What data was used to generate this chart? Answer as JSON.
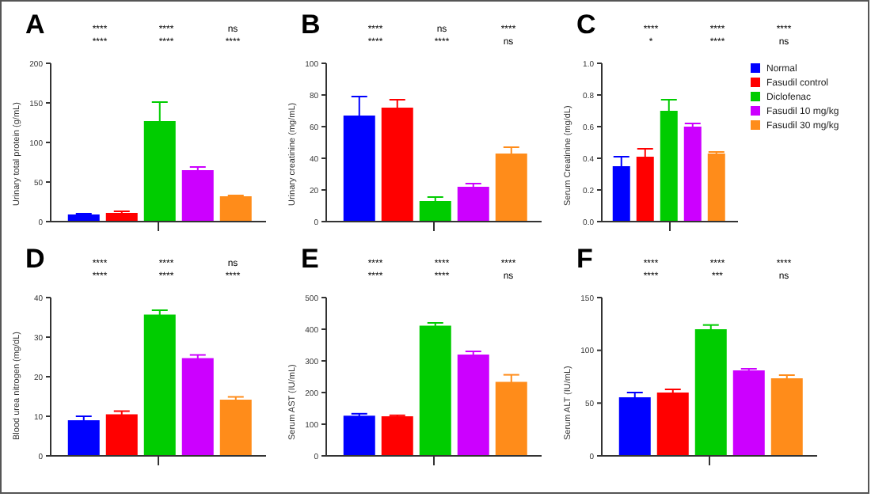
{
  "chart_data": [
    {
      "type": "bar",
      "title": "A",
      "ylabel": "Urinary total protein (g/mL)",
      "categories": [
        null
      ],
      "ylim": [
        0,
        200
      ],
      "yticks": [
        0,
        50,
        100,
        150,
        200
      ],
      "series": [
        {
          "color": "#0000ff",
          "values": [
            9
          ],
          "errors": [
            1
          ]
        },
        {
          "color": "#ff0000",
          "values": [
            11
          ],
          "errors": [
            2
          ]
        },
        {
          "color": "#00cc00",
          "values": [
            127
          ],
          "errors": [
            24
          ]
        },
        {
          "color": "#cc00ff",
          "values": [
            65
          ],
          "errors": [
            4
          ]
        },
        {
          "color": "#ff8c1a",
          "values": [
            32
          ],
          "errors": [
            1
          ]
        }
      ],
      "annotations": [
        "****",
        "****",
        "ns",
        "****",
        "****",
        "****"
      ]
    },
    {
      "type": "bar",
      "title": "B",
      "ylabel": "Urinary creatinine (mg/mL)",
      "categories": [
        null
      ],
      "ylim": [
        0,
        100
      ],
      "yticks": [
        0,
        20,
        40,
        60,
        80,
        100
      ],
      "series": [
        {
          "color": "#0000ff",
          "values": [
            67
          ],
          "errors": [
            12
          ]
        },
        {
          "color": "#ff0000",
          "values": [
            72
          ],
          "errors": [
            5
          ]
        },
        {
          "color": "#00cc00",
          "values": [
            13
          ],
          "errors": [
            2.5
          ]
        },
        {
          "color": "#cc00ff",
          "values": [
            22
          ],
          "errors": [
            2
          ]
        },
        {
          "color": "#ff8c1a",
          "values": [
            43
          ],
          "errors": [
            4
          ]
        }
      ],
      "annotations": [
        "****",
        "ns",
        "****",
        "****",
        "****",
        "ns"
      ]
    },
    {
      "type": "bar",
      "title": "C",
      "ylabel": "Serum Creatinine (mg/dL)",
      "categories": [
        null
      ],
      "ylim": [
        0,
        1
      ],
      "yticks": [
        {
          "value": 0,
          "label": "0.0"
        },
        {
          "value": 0.2,
          "label": "0.2"
        },
        {
          "value": 0.4,
          "label": "0.4"
        },
        {
          "value": 0.6,
          "label": "0.6"
        },
        {
          "value": 0.8,
          "label": "0.8"
        },
        {
          "value": 1,
          "label": "1.0"
        }
      ],
      "legend": "right",
      "series": [
        {
          "name": "Normal",
          "color": "#0000ff",
          "values": [
            0.35
          ],
          "errors": [
            0.06
          ]
        },
        {
          "name": "Fasudil control",
          "color": "#ff0000",
          "values": [
            0.41
          ],
          "errors": [
            0.05
          ]
        },
        {
          "name": "Diclofenac",
          "color": "#00cc00",
          "values": [
            0.7
          ],
          "errors": [
            0.07
          ]
        },
        {
          "name": "Fasudil 10 mg/kg",
          "color": "#cc00ff",
          "values": [
            0.6
          ],
          "errors": [
            0.02
          ]
        },
        {
          "name": "Fasudil 30 mg/kg",
          "color": "#ff8c1a",
          "values": [
            0.43
          ],
          "errors": [
            0.01
          ]
        }
      ],
      "annotations": [
        "****",
        "****",
        "****",
        "*",
        "****",
        "ns"
      ]
    },
    {
      "type": "bar",
      "title": "D",
      "ylabel": "Blood urea nitrogen (mg/dL)",
      "categories": [
        null
      ],
      "ylim": [
        0,
        40
      ],
      "yticks": [
        0,
        10,
        20,
        30,
        40
      ],
      "series": [
        {
          "color": "#0000ff",
          "values": [
            9
          ],
          "errors": [
            1
          ]
        },
        {
          "color": "#ff0000",
          "values": [
            10.5
          ],
          "errors": [
            0.8
          ]
        },
        {
          "color": "#00cc00",
          "values": [
            35.7
          ],
          "errors": [
            1.1
          ]
        },
        {
          "color": "#cc00ff",
          "values": [
            24.7
          ],
          "errors": [
            0.8
          ]
        },
        {
          "color": "#ff8c1a",
          "values": [
            14.2
          ],
          "errors": [
            0.7
          ]
        }
      ],
      "annotations": [
        "****",
        "****",
        "ns",
        "****",
        "****",
        "****"
      ]
    },
    {
      "type": "bar",
      "title": "E",
      "ylabel": "Serum AST (IU/mL)",
      "categories": [
        null
      ],
      "ylim": [
        0,
        500
      ],
      "yticks": [
        0,
        100,
        200,
        300,
        400,
        500
      ],
      "series": [
        {
          "color": "#0000ff",
          "values": [
            127
          ],
          "errors": [
            6
          ]
        },
        {
          "color": "#ff0000",
          "values": [
            125
          ],
          "errors": [
            3
          ]
        },
        {
          "color": "#00cc00",
          "values": [
            411
          ],
          "errors": [
            9
          ]
        },
        {
          "color": "#cc00ff",
          "values": [
            320
          ],
          "errors": [
            10
          ]
        },
        {
          "color": "#ff8c1a",
          "values": [
            234
          ],
          "errors": [
            22
          ]
        }
      ],
      "annotations": [
        "****",
        "****",
        "****",
        "****",
        "****",
        "ns"
      ]
    },
    {
      "type": "bar",
      "title": "F",
      "ylabel": "Serum ALT (IU/mL)",
      "categories": [
        null
      ],
      "ylim": [
        0,
        150
      ],
      "yticks": [
        0,
        50,
        100,
        150
      ],
      "series": [
        {
          "color": "#0000ff",
          "values": [
            55.5
          ],
          "errors": [
            4.5
          ]
        },
        {
          "color": "#ff0000",
          "values": [
            60
          ],
          "errors": [
            3
          ]
        },
        {
          "color": "#00cc00",
          "values": [
            120
          ],
          "errors": [
            4
          ]
        },
        {
          "color": "#cc00ff",
          "values": [
            81
          ],
          "errors": [
            1.5
          ]
        },
        {
          "color": "#ff8c1a",
          "values": [
            73.5
          ],
          "errors": [
            3
          ]
        }
      ],
      "annotations": [
        "****",
        "****",
        "****",
        "****",
        "***",
        "ns"
      ]
    }
  ]
}
